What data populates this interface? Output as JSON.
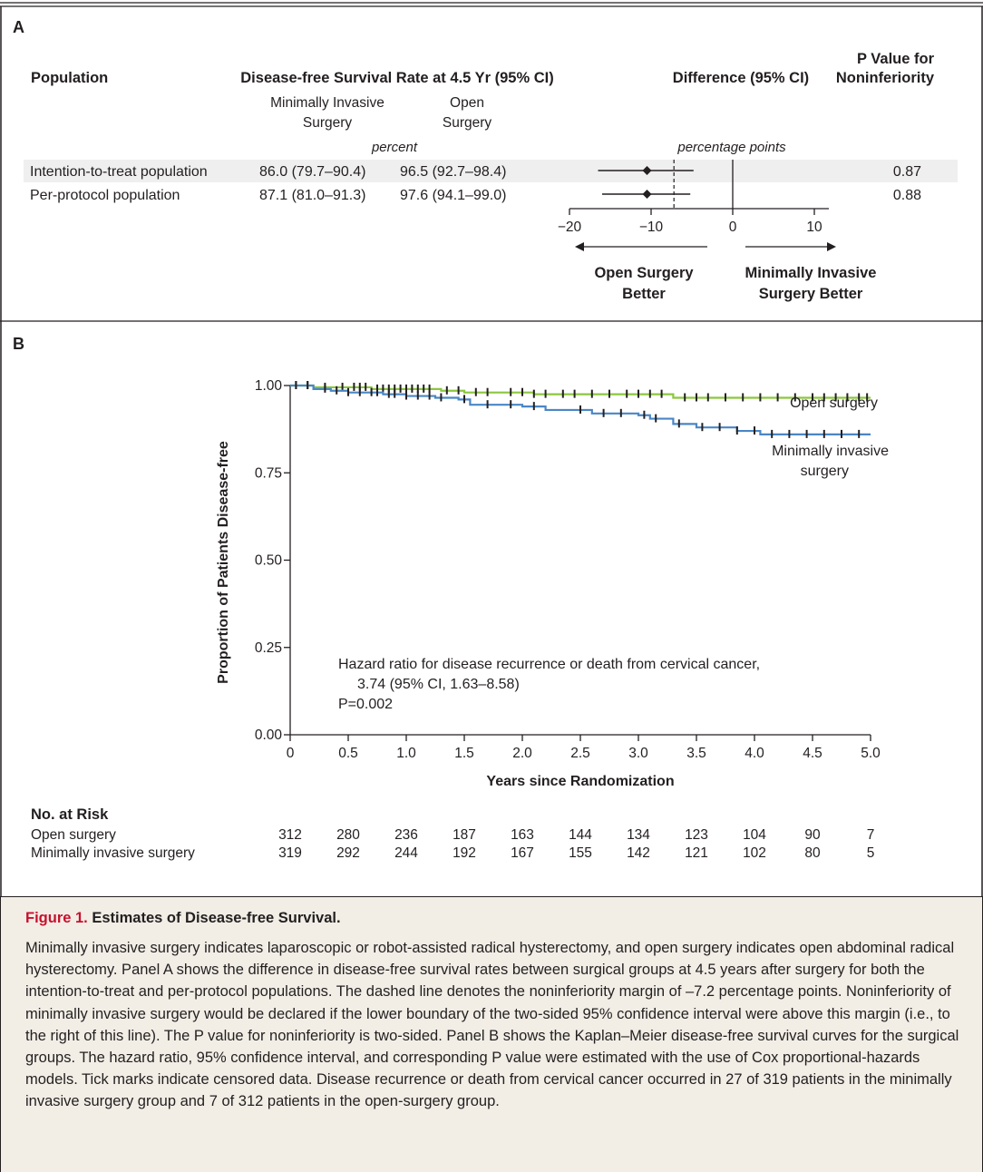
{
  "panel_a": {
    "label": "A",
    "headers": {
      "population": "Population",
      "rate": "Disease-free Survival Rate at 4.5 Yr (95% CI)",
      "mis_line1": "Minimally Invasive",
      "mis_line2": "Surgery",
      "open_line1": "Open",
      "open_line2": "Surgery",
      "difference": "Difference (95% CI)",
      "pvalue_line1": "P Value for",
      "pvalue_line2": "Noninferiority",
      "percent": "percent",
      "percentage_points": "percentage points"
    },
    "rows": [
      {
        "population": "Intention-to-treat population",
        "mis": "86.0 (79.7–90.4)",
        "open": "96.5 (92.7–98.4)",
        "p": "0.87"
      },
      {
        "population": "Per-protocol population",
        "mis": "87.1 (81.0–91.3)",
        "open": "97.6 (94.1–99.0)",
        "p": "0.88"
      }
    ],
    "forest": {
      "xlim": [
        -20,
        12
      ],
      "ticks": [
        {
          "v": -20,
          "label": "−20"
        },
        {
          "v": -10,
          "label": "−10"
        },
        {
          "v": 0,
          "label": "0"
        },
        {
          "v": 10,
          "label": "10"
        }
      ],
      "margin": -7.2,
      "estimates": [
        {
          "est": -10.5,
          "low": -16.5,
          "high": -4.8
        },
        {
          "est": -10.5,
          "low": -16.0,
          "high": -5.2
        }
      ],
      "left_label_1": "Open Surgery",
      "left_label_2": "Better",
      "right_label_1": "Minimally Invasive",
      "right_label_2": "Surgery Better"
    }
  },
  "panel_b": {
    "label": "B",
    "annotation_1": "Hazard ratio for disease recurrence or death from cervical cancer,",
    "annotation_2": "3.74 (95% CI, 1.63–8.58)",
    "annotation_3": "P=0.002",
    "risk_title": "No. at Risk",
    "risk": [
      {
        "group": "Open surgery",
        "counts": [
          "312",
          "280",
          "236",
          "187",
          "163",
          "144",
          "134",
          "123",
          "104",
          "90",
          "7"
        ]
      },
      {
        "group": "Minimally invasive surgery",
        "counts": [
          "319",
          "292",
          "244",
          "192",
          "167",
          "155",
          "142",
          "121",
          "102",
          "80",
          "5"
        ]
      }
    ]
  },
  "chart_data": {
    "type": "line",
    "title": "",
    "xlabel": "Years since Randomization",
    "ylabel": "Proportion of Patients Disease-free",
    "xlim": [
      0,
      5
    ],
    "ylim": [
      0,
      1
    ],
    "x_ticks": [
      "0",
      "0.5",
      "1.0",
      "1.5",
      "2.0",
      "2.5",
      "3.0",
      "3.5",
      "4.0",
      "4.5",
      "5.0"
    ],
    "y_ticks": [
      "0.00",
      "0.25",
      "0.50",
      "0.75",
      "1.00"
    ],
    "series": [
      {
        "name": "Open surgery",
        "color": "#8cc63f",
        "x": [
          0,
          0.2,
          0.7,
          1.3,
          1.5,
          2.1,
          3.3,
          5.0
        ],
        "y": [
          1.0,
          0.995,
          0.99,
          0.985,
          0.98,
          0.975,
          0.965,
          0.965
        ],
        "censor_x": [
          0.05,
          0.15,
          0.3,
          0.45,
          0.55,
          0.6,
          0.65,
          0.75,
          0.8,
          0.85,
          0.9,
          0.95,
          1.0,
          1.05,
          1.1,
          1.15,
          1.2,
          1.35,
          1.45,
          1.6,
          1.7,
          1.9,
          2.0,
          2.1,
          2.2,
          2.35,
          2.45,
          2.6,
          2.75,
          2.9,
          3.0,
          3.1,
          3.2,
          3.4,
          3.5,
          3.6,
          3.75,
          3.9,
          4.05,
          4.2,
          4.35,
          4.5,
          4.6,
          4.7,
          4.8,
          4.9,
          4.97
        ]
      },
      {
        "name": "Minimally invasive surgery",
        "color": "#4a86c5",
        "x": [
          0,
          0.2,
          0.35,
          0.5,
          0.8,
          1.0,
          1.25,
          1.45,
          1.55,
          2.0,
          2.2,
          2.6,
          3.0,
          3.1,
          3.3,
          3.5,
          3.85,
          4.05,
          5.0
        ],
        "y": [
          1.0,
          0.99,
          0.985,
          0.98,
          0.975,
          0.97,
          0.965,
          0.96,
          0.945,
          0.94,
          0.93,
          0.92,
          0.915,
          0.905,
          0.89,
          0.88,
          0.87,
          0.86,
          0.86
        ],
        "censor_x": [
          0.05,
          0.15,
          0.3,
          0.4,
          0.5,
          0.6,
          0.7,
          0.75,
          0.85,
          0.9,
          1.0,
          1.1,
          1.2,
          1.3,
          1.5,
          1.7,
          1.9,
          2.1,
          2.5,
          2.7,
          2.85,
          3.05,
          3.15,
          3.35,
          3.55,
          3.7,
          3.85,
          4.0,
          4.15,
          4.3,
          4.45,
          4.6,
          4.75,
          4.9
        ]
      }
    ],
    "labels": {
      "open_series_label": "Open surgery",
      "mis_series_label_1": "Minimally invasive",
      "mis_series_label_2": "surgery"
    }
  },
  "caption": {
    "figure_number": "Figure 1.",
    "title": "Estimates of Disease-free Survival.",
    "body": "Minimally invasive surgery indicates laparoscopic or robot-assisted radical hysterectomy, and open surgery indicates open abdominal radical hysterectomy. Panel A shows the difference in disease-free survival rates between surgical groups at 4.5 years after surgery for both the intention-to-treat and per-protocol populations. The dashed line denotes the noninferiority margin of –7.2 percentage points. Noninferiority of minimally invasive surgery would be declared if the lower boundary of the two-sided 95% confidence interval were above this margin (i.e., to the right of this line). The P value for noninferiority is two-sided. Panel B shows the Kaplan–Meier disease-free survival curves for the surgical groups. The hazard ratio, 95% confidence interval, and corresponding P value were estimated with the use of Cox proportional-hazards models. Tick marks indicate censored data. Disease recurrence or death from cervical cancer occurred in 27 of 319 patients in the minimally invasive surgery group and 7 of 312 patients in the open-surgery group."
  }
}
